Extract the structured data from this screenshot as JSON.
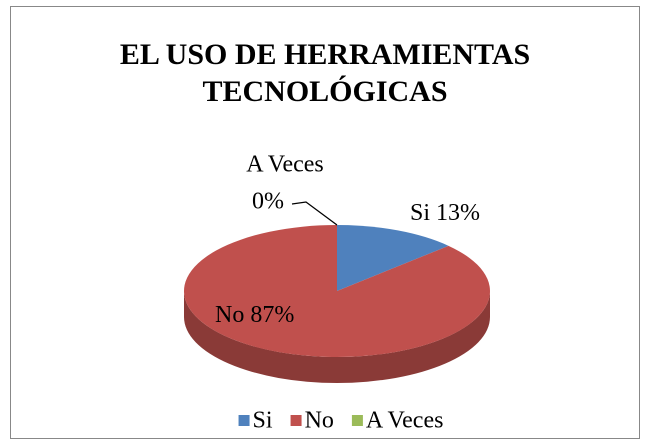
{
  "chart_data": {
    "type": "pie3d",
    "title": "EL USO DE HERRAMIENTAS TECNOLÓGICAS",
    "categories": [
      "Si",
      "No",
      "A Veces"
    ],
    "values": [
      13,
      87,
      0
    ],
    "value_labels": [
      "13%",
      "87%",
      "0%"
    ],
    "colors": [
      "#4f81bd",
      "#c0504d",
      "#9bbb59"
    ],
    "legend": "bottom"
  }
}
